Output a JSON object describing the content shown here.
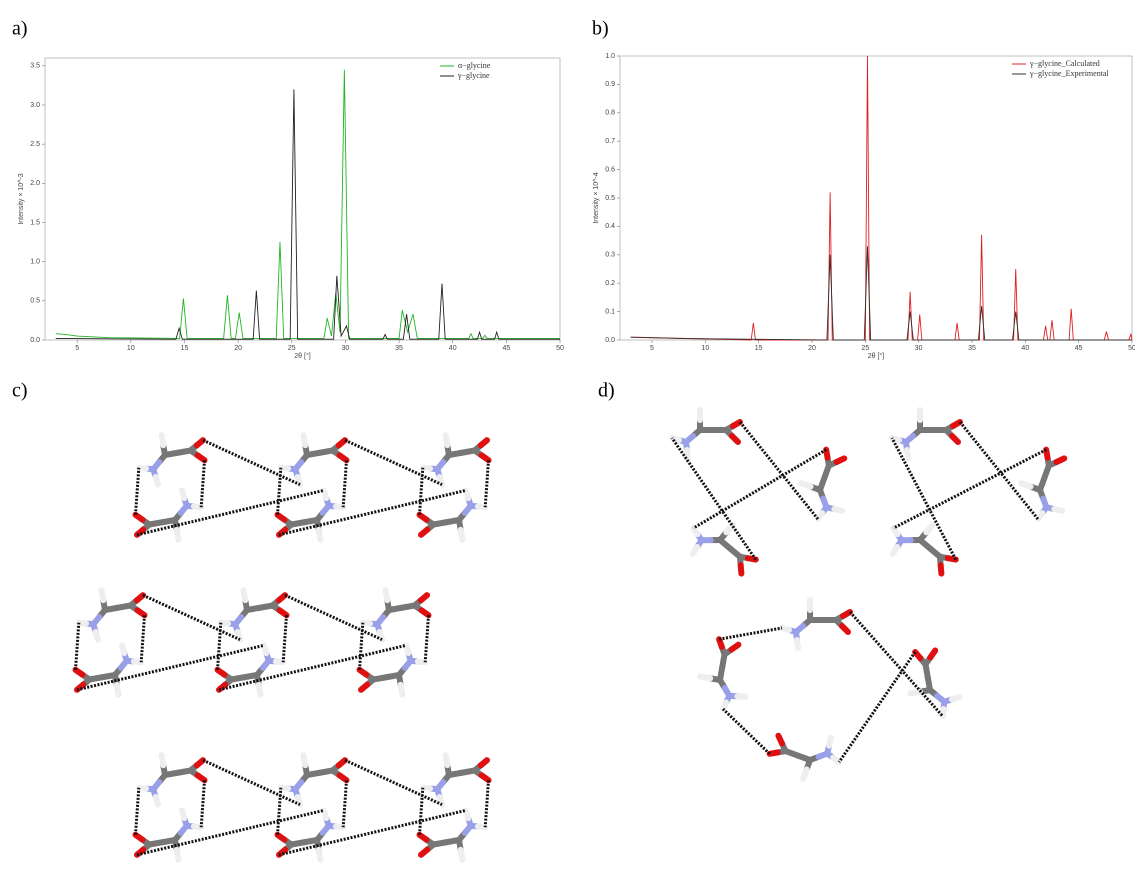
{
  "panel_labels": [
    "a)",
    "b)",
    "c)",
    "d)"
  ],
  "chart_data": [
    {
      "type": "line",
      "xlabel": "2θ [°]",
      "ylabel": "Intensity × 10^-3",
      "xlim": [
        2,
        50
      ],
      "xticks": [
        5,
        10,
        15,
        20,
        25,
        30,
        35,
        40,
        45,
        50
      ],
      "ylim": [
        0,
        3.6
      ],
      "yticks": [
        {
          "value": 0,
          "label": "0.0"
        },
        0.5,
        {
          "value": 1,
          "label": "1.0"
        },
        1.5,
        {
          "value": 2,
          "label": "2.0"
        },
        2.5,
        {
          "value": 3,
          "label": "3.0"
        },
        3.5
      ],
      "legend": "top-right",
      "series": [
        {
          "name": "α−glycine",
          "color": "#22b422",
          "x": [
            3,
            4,
            5,
            8,
            14.55,
            14.9,
            15.25,
            18.65,
            19.0,
            19.35,
            19.75,
            20.1,
            20.45,
            23.55,
            23.9,
            24.25,
            28.0,
            28.3,
            28.7,
            29.1,
            29.5,
            29.9,
            30.3,
            35.0,
            35.3,
            35.8,
            36.3,
            36.7,
            41.5,
            41.7,
            41.9,
            42.8,
            43.0,
            43.2,
            50
          ],
          "values": [
            0.08,
            0.07,
            0.05,
            0.03,
            0.02,
            0.53,
            0.02,
            0.02,
            0.57,
            0.02,
            0.02,
            0.35,
            0.02,
            0.02,
            1.25,
            0.02,
            0.02,
            0.28,
            0.05,
            0.6,
            0.1,
            3.45,
            0.02,
            0.02,
            0.38,
            0.1,
            0.33,
            0.02,
            0.02,
            0.08,
            0.02,
            0.02,
            0.06,
            0.02,
            0.02
          ]
        },
        {
          "name": "γ−glycine",
          "color": "#222222",
          "x": [
            3,
            14.2,
            14.5,
            14.8,
            21.4,
            21.7,
            22.0,
            24.85,
            25.2,
            25.55,
            28.9,
            29.2,
            29.6,
            30.1,
            30.4,
            33.5,
            33.7,
            33.9,
            35.4,
            35.7,
            36.0,
            38.7,
            39.0,
            39.3,
            42.3,
            42.5,
            42.7,
            43.9,
            44.1,
            44.3,
            50
          ],
          "values": [
            0.02,
            0.01,
            0.15,
            0.01,
            0.01,
            0.63,
            0.01,
            0.01,
            3.2,
            0.01,
            0.01,
            0.82,
            0.05,
            0.18,
            0.01,
            0.01,
            0.07,
            0.01,
            0.01,
            0.33,
            0.01,
            0.01,
            0.72,
            0.01,
            0.01,
            0.1,
            0.01,
            0.01,
            0.1,
            0.01,
            0.01
          ]
        }
      ]
    },
    {
      "type": "line",
      "xlabel": "2θ [°]",
      "ylabel": "Intensity × 10^-4",
      "xlim": [
        2,
        50
      ],
      "xticks": [
        5,
        10,
        15,
        20,
        25,
        30,
        35,
        40,
        45,
        50
      ],
      "ylim": [
        0,
        1.0
      ],
      "yticks": [
        {
          "value": 0,
          "label": "0.0"
        },
        0.1,
        0.2,
        0.3,
        0.4,
        0.5,
        0.6,
        0.7,
        0.8,
        0.9,
        {
          "value": 1,
          "label": "1.0"
        }
      ],
      "legend": "top-right",
      "series": [
        {
          "name": "γ−glycine_Calculated",
          "color": "#e02020",
          "x": [
            3,
            14.3,
            14.5,
            14.7,
            21.5,
            21.7,
            21.9,
            25.0,
            25.2,
            25.4,
            29.0,
            29.2,
            29.4,
            29.9,
            30.1,
            30.3,
            33.4,
            33.6,
            33.8,
            35.7,
            35.9,
            36.1,
            38.9,
            39.1,
            39.3,
            41.7,
            41.9,
            42.1,
            42.3,
            42.5,
            42.7,
            44.1,
            44.3,
            44.5,
            47.4,
            47.6,
            47.8,
            49.7,
            49.9,
            50
          ],
          "values": [
            0.01,
            0,
            0.06,
            0,
            0,
            0.52,
            0,
            0,
            1.0,
            0,
            0,
            0.17,
            0,
            0,
            0.09,
            0,
            0,
            0.06,
            0,
            0,
            0.37,
            0,
            0,
            0.25,
            0,
            0,
            0.05,
            0,
            0,
            0.07,
            0,
            0,
            0.11,
            0,
            0,
            0.03,
            0,
            0,
            0.02,
            0
          ]
        },
        {
          "name": "γ−glycine_Experimental",
          "color": "#333333",
          "x": [
            3,
            8,
            21.4,
            21.7,
            22.0,
            24.9,
            25.2,
            25.5,
            28.9,
            29.2,
            29.5,
            35.6,
            35.9,
            36.2,
            38.8,
            39.1,
            39.4,
            50
          ],
          "values": [
            0.01,
            0.005,
            0,
            0.3,
            0,
            0,
            0.33,
            0,
            0,
            0.1,
            0,
            0,
            0.12,
            0,
            0,
            0.1,
            0,
            0
          ]
        }
      ]
    }
  ]
}
